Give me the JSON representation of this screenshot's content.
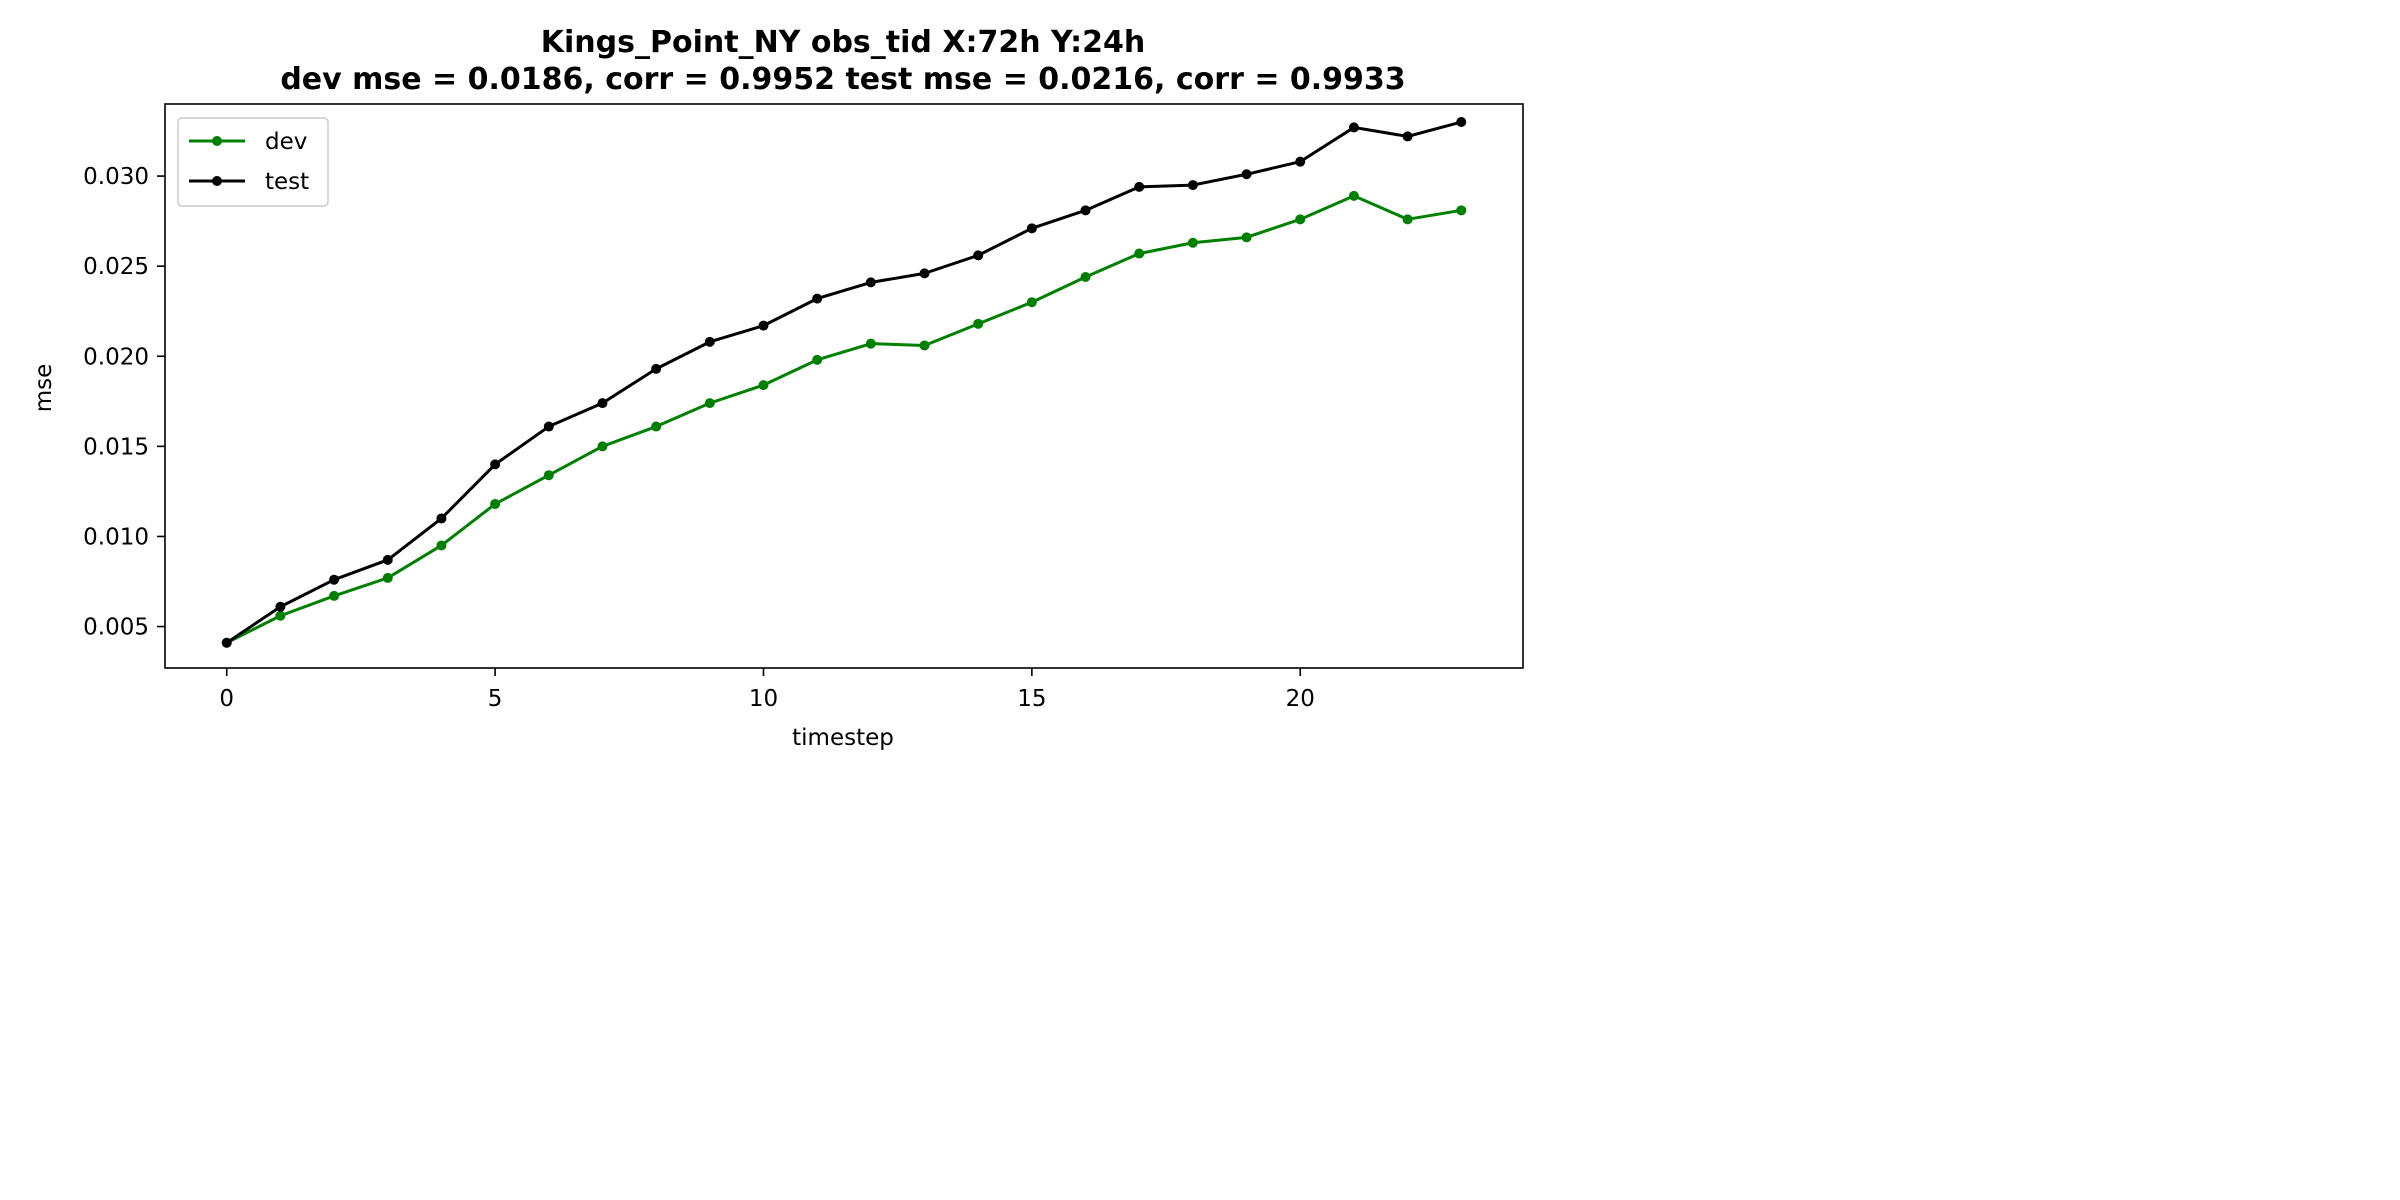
{
  "chart_data": {
    "type": "line",
    "title_line1": "Kings_Point_NY   obs_tid   X:72h   Y:24h",
    "title_line2": "dev mse = 0.0186, corr = 0.9952   test mse = 0.0216, corr = 0.9933",
    "xlabel": "timestep",
    "ylabel": "mse",
    "xlim": [
      -1.15,
      24.15
    ],
    "ylim": [
      0.0027,
      0.034
    ],
    "xticks": [
      0,
      5,
      10,
      15,
      20
    ],
    "yticks": [
      0.005,
      0.01,
      0.015,
      0.02,
      0.025,
      0.03
    ],
    "ytick_labels": [
      "0.005",
      "0.010",
      "0.015",
      "0.020",
      "0.025",
      "0.030"
    ],
    "legend_position": "upper-left",
    "x": [
      0,
      1,
      2,
      3,
      4,
      5,
      6,
      7,
      8,
      9,
      10,
      11,
      12,
      13,
      14,
      15,
      16,
      17,
      18,
      19,
      20,
      21,
      22,
      23
    ],
    "series": [
      {
        "name": "dev",
        "color": "#008000",
        "values": [
          0.0041,
          0.0056,
          0.0067,
          0.0077,
          0.0095,
          0.0118,
          0.0134,
          0.015,
          0.0161,
          0.0174,
          0.0184,
          0.0198,
          0.0207,
          0.0206,
          0.0218,
          0.023,
          0.0244,
          0.0257,
          0.0263,
          0.0266,
          0.0276,
          0.0289,
          0.0276,
          0.0281
        ]
      },
      {
        "name": "test",
        "color": "#000000",
        "values": [
          0.0041,
          0.0061,
          0.0076,
          0.0087,
          0.011,
          0.014,
          0.0161,
          0.0174,
          0.0193,
          0.0208,
          0.0217,
          0.0232,
          0.0241,
          0.0246,
          0.0256,
          0.0271,
          0.0281,
          0.0294,
          0.0295,
          0.0301,
          0.0308,
          0.0327,
          0.0322,
          0.033
        ]
      }
    ]
  }
}
